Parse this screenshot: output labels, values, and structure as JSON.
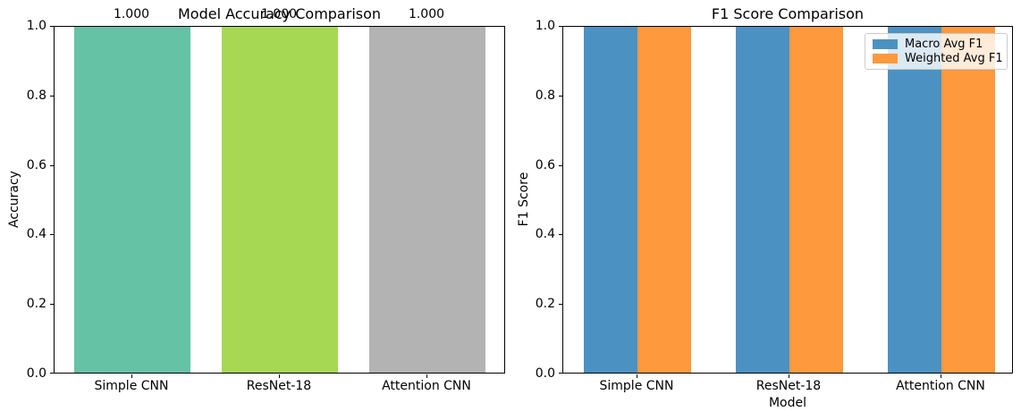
{
  "chart_data": [
    {
      "type": "bar",
      "title": "Model Accuracy Comparison",
      "ylabel": "Accuracy",
      "xlabel": "",
      "categories": [
        "Simple CNN",
        "ResNet-18",
        "Attention CNN"
      ],
      "values": [
        1.0,
        1.0,
        1.0
      ],
      "bar_labels": [
        "1.000",
        "1.000",
        "1.000"
      ],
      "bar_colors": [
        "#66c2a5",
        "#a6d854",
        "#b3b3b3"
      ],
      "ylim": [
        0.0,
        1.0
      ],
      "yticks": [
        "1.0",
        "0.8",
        "0.6",
        "0.4",
        "0.2",
        "0.0"
      ],
      "grid": false,
      "legend": null
    },
    {
      "type": "grouped-bar",
      "title": "F1 Score Comparison",
      "ylabel": "F1 Score",
      "xlabel": "Model",
      "categories": [
        "Simple CNN",
        "ResNet-18",
        "Attention CNN"
      ],
      "series": [
        {
          "name": "Macro Avg F1",
          "color": "#4b92c3",
          "values": [
            1.0,
            1.0,
            1.0
          ]
        },
        {
          "name": "Weighted Avg F1",
          "color": "#ff993e",
          "values": [
            1.0,
            1.0,
            1.0
          ]
        }
      ],
      "ylim": [
        0.0,
        1.0
      ],
      "yticks": [
        "1.0",
        "0.8",
        "0.6",
        "0.4",
        "0.2",
        "0.0"
      ],
      "grid": false,
      "legend_position": "upper right"
    }
  ]
}
